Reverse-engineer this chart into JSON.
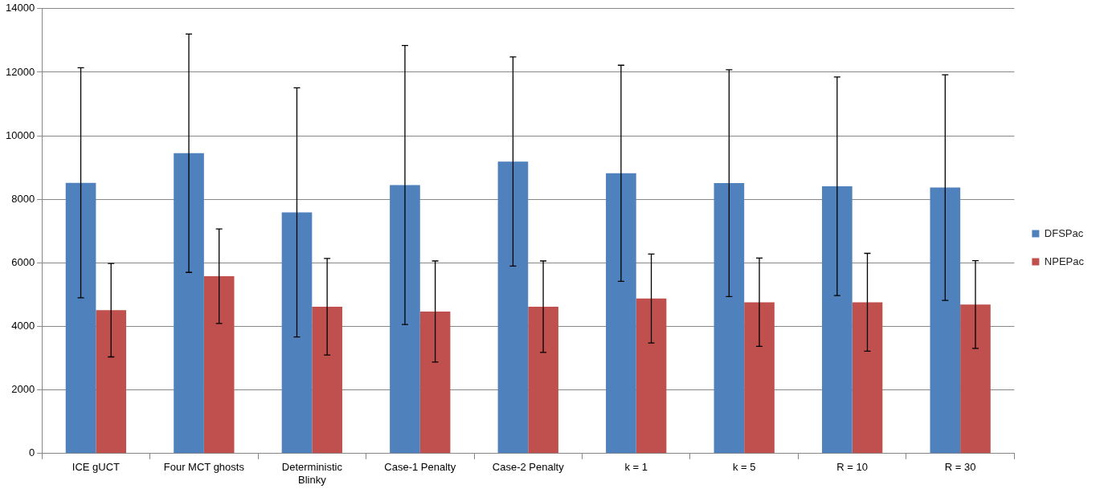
{
  "chart_data": {
    "type": "bar",
    "categories": [
      "ICE gUCT",
      "Four MCT ghosts",
      "Deterministic Blinky",
      "Case-1 Penalty",
      "Case-2 Penalty",
      "k = 1",
      "k = 5",
      "R = 10",
      "R = 30"
    ],
    "series": [
      {
        "name": "DFSPac",
        "color": "#4f81bd",
        "values": [
          8520,
          9450,
          7590,
          8450,
          9190,
          8820,
          8510,
          8410,
          8370
        ],
        "errors": [
          3620,
          3750,
          3920,
          4390,
          3290,
          3400,
          3570,
          3440,
          3550
        ]
      },
      {
        "name": "NPEPac",
        "color": "#c0504d",
        "values": [
          4510,
          5580,
          4620,
          4470,
          4620,
          4880,
          4760,
          4760,
          4690
        ],
        "errors": [
          1470,
          1490,
          1520,
          1590,
          1440,
          1400,
          1390,
          1540,
          1380
        ]
      }
    ],
    "ylim": [
      0,
      14000
    ],
    "yticks": [
      0,
      2000,
      4000,
      6000,
      8000,
      10000,
      12000,
      14000
    ],
    "grid": "y",
    "legend": "right"
  }
}
